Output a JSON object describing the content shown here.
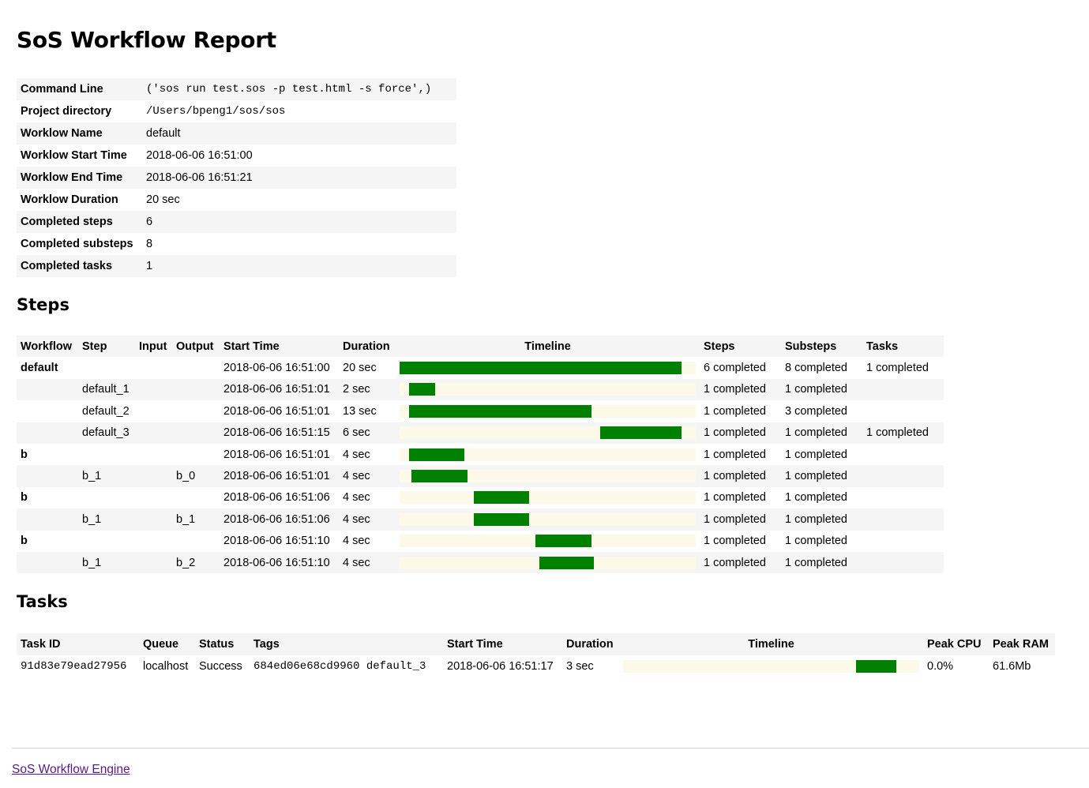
{
  "title": "SoS Workflow Report",
  "summary": [
    {
      "label": "Command Line",
      "value": "('sos run test.sos -p test.html -s force',)",
      "mono": true
    },
    {
      "label": "Project directory",
      "value": "/Users/bpeng1/sos/sos",
      "mono": true
    },
    {
      "label": "Worklow Name",
      "value": "default"
    },
    {
      "label": "Worklow Start Time",
      "value": "2018-06-06 16:51:00"
    },
    {
      "label": "Worklow End Time",
      "value": "2018-06-06 16:51:21"
    },
    {
      "label": "Worklow Duration",
      "value": "20 sec"
    },
    {
      "label": "Completed steps",
      "value": "6"
    },
    {
      "label": "Completed substeps",
      "value": "8"
    },
    {
      "label": "Completed tasks",
      "value": "1"
    }
  ],
  "steps_heading": "Steps",
  "steps_table": {
    "headers": [
      "Workflow",
      "Step",
      "Input",
      "Output",
      "Start Time",
      "Duration",
      "Timeline",
      "Steps",
      "Substeps",
      "Tasks"
    ],
    "timeline_range": [
      0,
      21
    ],
    "rows": [
      {
        "workflow": "default",
        "step": "",
        "input": "",
        "output": "",
        "start": "2018-06-06 16:51:00",
        "duration": "20 sec",
        "t_start": 0,
        "t_end": 20,
        "steps": "6 completed",
        "substeps": "8 completed",
        "tasks": "1 completed"
      },
      {
        "workflow": "",
        "step": "default_1",
        "input": "",
        "output": "",
        "start": "2018-06-06 16:51:01",
        "duration": "2 sec",
        "t_start": 0.66,
        "t_end": 2.5,
        "steps": "1 completed",
        "substeps": "1 completed",
        "tasks": ""
      },
      {
        "workflow": "",
        "step": "default_2",
        "input": "",
        "output": "",
        "start": "2018-06-06 16:51:01",
        "duration": "13 sec",
        "t_start": 0.66,
        "t_end": 13.6,
        "steps": "1 completed",
        "substeps": "3 completed",
        "tasks": ""
      },
      {
        "workflow": "",
        "step": "default_3",
        "input": "",
        "output": "",
        "start": "2018-06-06 16:51:15",
        "duration": "6 sec",
        "t_start": 14.2,
        "t_end": 20,
        "steps": "1 completed",
        "substeps": "1 completed",
        "tasks": "1 completed"
      },
      {
        "workflow": "b",
        "step": "",
        "input": "",
        "output": "",
        "start": "2018-06-06 16:51:01",
        "duration": "4 sec",
        "t_start": 0.66,
        "t_end": 4.6,
        "steps": "1 completed",
        "substeps": "1 completed",
        "tasks": ""
      },
      {
        "workflow": "",
        "step": "b_1",
        "input": "",
        "output": "b_0",
        "start": "2018-06-06 16:51:01",
        "duration": "4 sec",
        "t_start": 0.85,
        "t_end": 4.8,
        "steps": "1 completed",
        "substeps": "1 completed",
        "tasks": ""
      },
      {
        "workflow": "b",
        "step": "",
        "input": "",
        "output": "",
        "start": "2018-06-06 16:51:06",
        "duration": "4 sec",
        "t_start": 5.25,
        "t_end": 9.2,
        "steps": "1 completed",
        "substeps": "1 completed",
        "tasks": ""
      },
      {
        "workflow": "",
        "step": "b_1",
        "input": "",
        "output": "b_1",
        "start": "2018-06-06 16:51:06",
        "duration": "4 sec",
        "t_start": 5.25,
        "t_end": 9.2,
        "steps": "1 completed",
        "substeps": "1 completed",
        "tasks": ""
      },
      {
        "workflow": "b",
        "step": "",
        "input": "",
        "output": "",
        "start": "2018-06-06 16:51:10",
        "duration": "4 sec",
        "t_start": 9.65,
        "t_end": 13.6,
        "steps": "1 completed",
        "substeps": "1 completed",
        "tasks": ""
      },
      {
        "workflow": "",
        "step": "b_1",
        "input": "",
        "output": "b_2",
        "start": "2018-06-06 16:51:10",
        "duration": "4 sec",
        "t_start": 9.9,
        "t_end": 13.8,
        "steps": "1 completed",
        "substeps": "1 completed",
        "tasks": ""
      }
    ]
  },
  "tasks_heading": "Tasks",
  "tasks_table": {
    "headers": [
      "Task ID",
      "Queue",
      "Status",
      "Tags",
      "Start Time",
      "Duration",
      "Timeline",
      "Peak CPU",
      "Peak RAM"
    ],
    "timeline_range": [
      0,
      21
    ],
    "rows": [
      {
        "id": "91d83e79ead27956",
        "queue": "localhost",
        "status": "Success",
        "tags": "684ed06e68cd9960 default_3",
        "start": "2018-06-06 16:51:17",
        "duration": "3 sec",
        "t_start": 16.5,
        "t_end": 19.4,
        "cpu": "0.0%",
        "ram": "61.6Mb"
      }
    ]
  },
  "footer": {
    "link_text": "SoS Workflow Engine"
  },
  "colors": {
    "bar": "#008000",
    "timeline_bg": "#fdf9e8",
    "stripe": "#f5f5f5",
    "link": "#551a8b"
  }
}
